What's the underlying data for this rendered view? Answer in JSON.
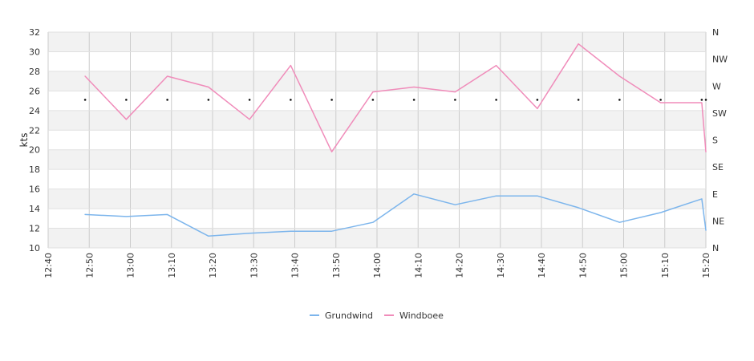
{
  "chart_data": {
    "type": "line",
    "ylabel": "kts",
    "ylim": [
      10,
      32
    ],
    "yticks": [
      10,
      12,
      14,
      16,
      18,
      20,
      22,
      24,
      26,
      28,
      30,
      32
    ],
    "xlim": [
      "12:40",
      "15:20"
    ],
    "xticks": [
      "12:40",
      "12:50",
      "13:00",
      "13:10",
      "13:20",
      "13:30",
      "13:40",
      "13:50",
      "14:00",
      "14:10",
      "14:20",
      "14:30",
      "14:40",
      "14:50",
      "15:00",
      "15:10",
      "15:20"
    ],
    "direction_axis": {
      "position": "right",
      "labels": [
        "N",
        "NE",
        "E",
        "SE",
        "S",
        "SW",
        "W",
        "NW",
        "N"
      ]
    },
    "grid": true,
    "legend_position": "bottom-center",
    "direction_markers": {
      "y": 25.1,
      "x": [
        "12:49",
        "12:59",
        "13:09",
        "13:19",
        "13:29",
        "13:39",
        "13:49",
        "13:59",
        "14:09",
        "14:19",
        "14:29",
        "14:39",
        "14:49",
        "14:59",
        "15:09",
        "15:19",
        "15:20"
      ]
    },
    "series": [
      {
        "name": "Grundwind",
        "color": "#7cb5ec",
        "points": [
          {
            "x": "12:49",
            "y": 13.4
          },
          {
            "x": "12:59",
            "y": 13.2
          },
          {
            "x": "13:09",
            "y": 13.4
          },
          {
            "x": "13:19",
            "y": 11.2
          },
          {
            "x": "13:29",
            "y": 11.5
          },
          {
            "x": "13:39",
            "y": 11.7
          },
          {
            "x": "13:49",
            "y": 11.7
          },
          {
            "x": "13:59",
            "y": 12.6
          },
          {
            "x": "14:09",
            "y": 15.5
          },
          {
            "x": "14:19",
            "y": 14.4
          },
          {
            "x": "14:29",
            "y": 15.3
          },
          {
            "x": "14:39",
            "y": 15.3
          },
          {
            "x": "14:49",
            "y": 14.1
          },
          {
            "x": "14:59",
            "y": 12.6
          },
          {
            "x": "15:09",
            "y": 13.6
          },
          {
            "x": "15:19",
            "y": 15.0
          },
          {
            "x": "15:20",
            "y": 11.8
          }
        ]
      },
      {
        "name": "Windboee",
        "color": "#f08cba",
        "points": [
          {
            "x": "12:49",
            "y": 27.5
          },
          {
            "x": "12:59",
            "y": 23.1
          },
          {
            "x": "13:09",
            "y": 27.5
          },
          {
            "x": "13:19",
            "y": 26.4
          },
          {
            "x": "13:29",
            "y": 23.1
          },
          {
            "x": "13:39",
            "y": 28.6
          },
          {
            "x": "13:49",
            "y": 19.8
          },
          {
            "x": "13:59",
            "y": 25.9
          },
          {
            "x": "14:09",
            "y": 26.4
          },
          {
            "x": "14:19",
            "y": 25.9
          },
          {
            "x": "14:29",
            "y": 28.6
          },
          {
            "x": "14:39",
            "y": 24.2
          },
          {
            "x": "14:49",
            "y": 30.8
          },
          {
            "x": "14:59",
            "y": 27.5
          },
          {
            "x": "15:09",
            "y": 24.8
          },
          {
            "x": "15:19",
            "y": 24.8
          },
          {
            "x": "15:20",
            "y": 19.8
          }
        ]
      }
    ]
  }
}
